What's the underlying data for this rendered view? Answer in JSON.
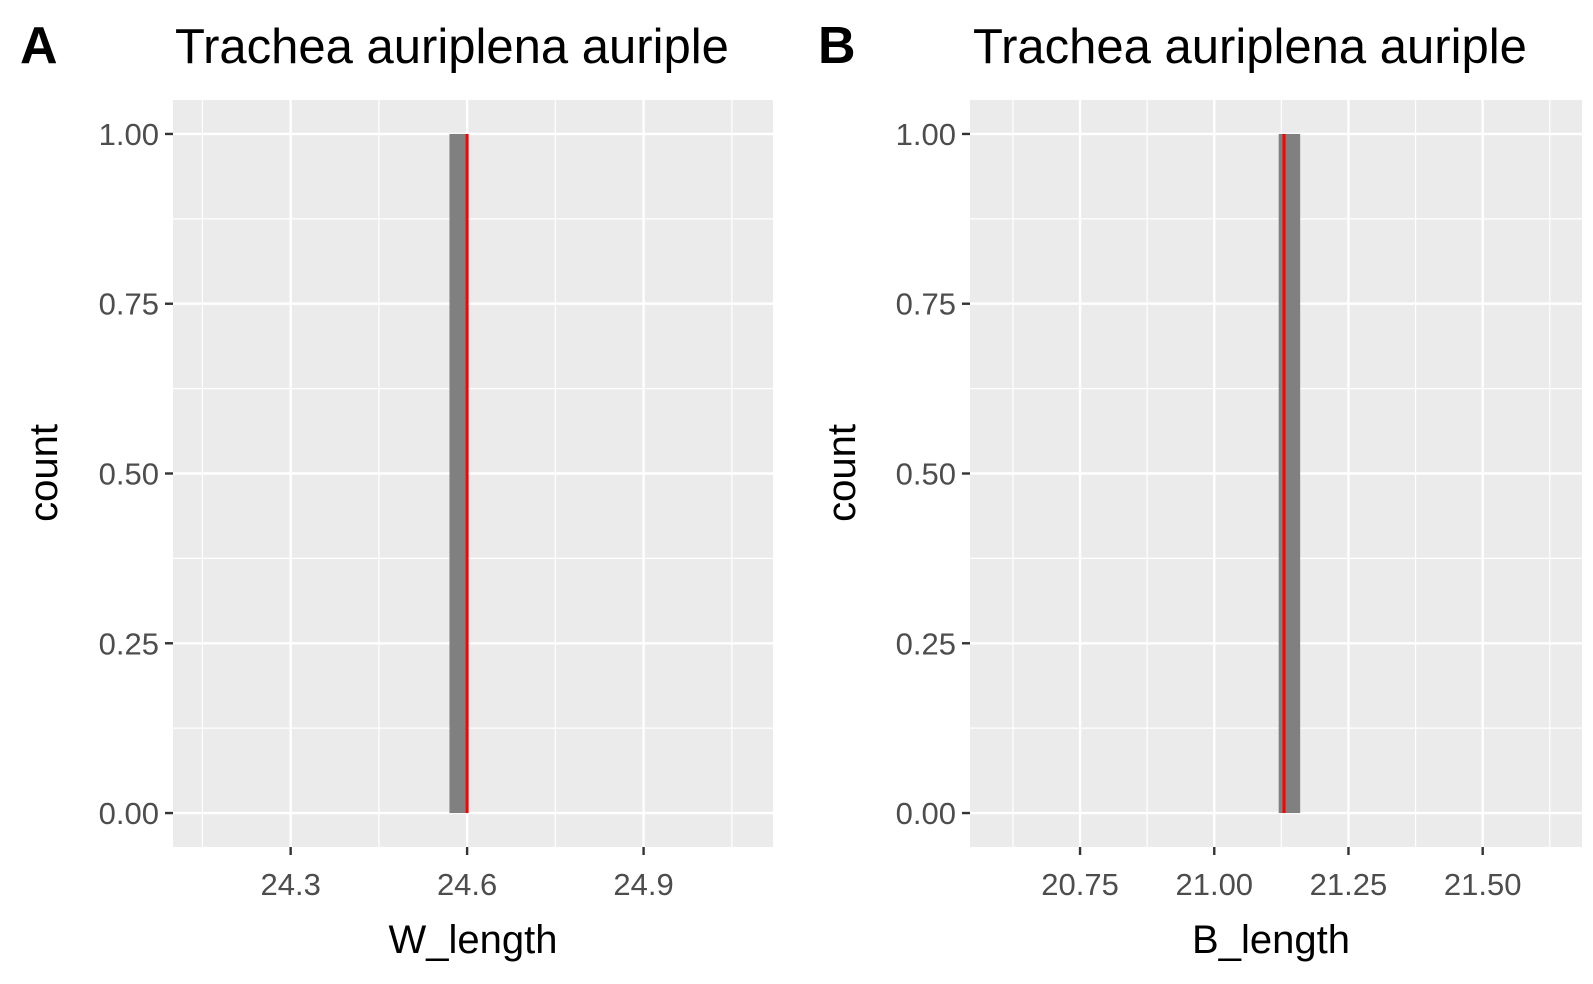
{
  "chart_data": [
    {
      "type": "bar",
      "tag": "A",
      "title": "Trachea auriplena auriple",
      "xlabel": "W_length",
      "ylabel": "count",
      "xlim": [
        24.1,
        25.12
      ],
      "ylim": [
        -0.05,
        1.05
      ],
      "x_ticks": [
        24.3,
        24.6,
        24.9
      ],
      "x_tick_labels": [
        "24.3",
        "24.6",
        "24.9"
      ],
      "y_ticks": [
        0,
        0.25,
        0.5,
        0.75,
        1
      ],
      "y_tick_labels": [
        "0.00",
        "0.25",
        "0.50",
        "0.75",
        "1.00"
      ],
      "bars": [
        {
          "x0": 24.57,
          "x1": 24.6,
          "count": 1
        }
      ],
      "vline": {
        "x": 24.6,
        "color": "#ff0000"
      },
      "grid": true
    },
    {
      "type": "bar",
      "tag": "B",
      "title": "Trachea auriplena auriple",
      "xlabel": "B_length",
      "ylabel": "count",
      "xlim": [
        20.545,
        21.685
      ],
      "ylim": [
        -0.05,
        1.05
      ],
      "x_ticks": [
        20.75,
        21.0,
        21.25,
        21.5
      ],
      "x_tick_labels": [
        "20.75",
        "21.00",
        "21.25",
        "21.50"
      ],
      "y_ticks": [
        0,
        0.25,
        0.5,
        0.75,
        1
      ],
      "y_tick_labels": [
        "0.00",
        "0.25",
        "0.50",
        "0.75",
        "1.00"
      ],
      "bars": [
        {
          "x0": 21.12,
          "x1": 21.16,
          "count": 1
        }
      ],
      "vline": {
        "x": 21.13,
        "color": "#ff0000"
      },
      "grid": true
    }
  ],
  "colors": {
    "panel_background": "#ebebeb",
    "grid": "#ffffff",
    "bar_fill": "#808080",
    "tick_text": "#4d4d4d",
    "axis_tick": "#333333"
  }
}
